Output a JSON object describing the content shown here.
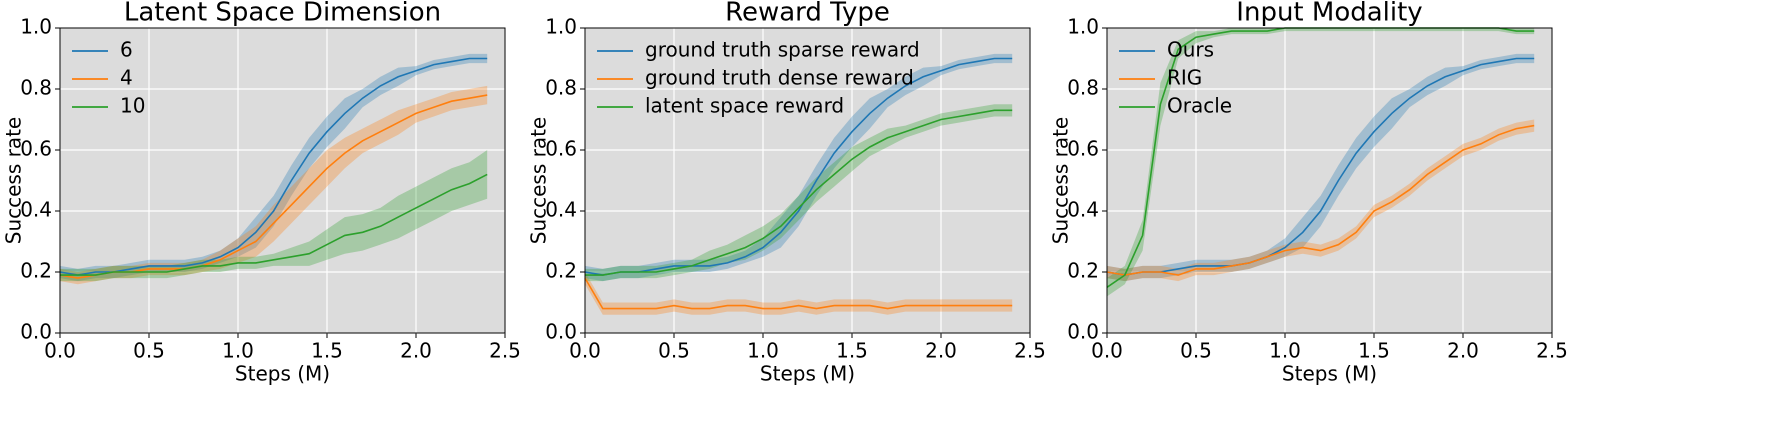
{
  "chart_data": [
    {
      "type": "line",
      "title": "Latent Space Dimension",
      "xlabel": "Steps (M)",
      "ylabel": "Success rate",
      "grid": true,
      "legend": "upper left",
      "xlim": [
        0,
        2.5
      ],
      "ylim": [
        0,
        1
      ],
      "xticks": [
        {
          "value": 0,
          "label": "0.0"
        },
        0.5,
        {
          "value": 1,
          "label": "1.0"
        },
        1.5,
        {
          "value": 2,
          "label": "2.0"
        },
        2.5
      ],
      "yticks": [
        {
          "value": 0,
          "label": "0.0"
        },
        0.2,
        0.4,
        0.6,
        0.8,
        {
          "value": 1,
          "label": "1.0"
        }
      ],
      "x": [
        0,
        0.1,
        0.2,
        0.3,
        0.4,
        0.5,
        0.6,
        0.7,
        0.8,
        0.9,
        1,
        1.1,
        1.2,
        1.3,
        1.4,
        1.5,
        1.6,
        1.7,
        1.8,
        1.9,
        2,
        2.1,
        2.2,
        2.3,
        2.4
      ],
      "series": [
        {
          "name": "6",
          "color": "#1f77b4",
          "values": [
            0.2,
            0.19,
            0.2,
            0.2,
            0.21,
            0.22,
            0.22,
            0.22,
            0.23,
            0.25,
            0.28,
            0.33,
            0.4,
            0.5,
            0.59,
            0.66,
            0.72,
            0.77,
            0.81,
            0.84,
            0.86,
            0.88,
            0.89,
            0.9,
            0.9
          ],
          "lower": [
            0.18,
            0.17,
            0.18,
            0.18,
            0.19,
            0.2,
            0.2,
            0.2,
            0.21,
            0.23,
            0.25,
            0.28,
            0.35,
            0.45,
            0.54,
            0.61,
            0.67,
            0.74,
            0.78,
            0.81,
            0.845,
            0.865,
            0.875,
            0.885,
            0.885
          ],
          "upper": [
            0.22,
            0.21,
            0.22,
            0.22,
            0.23,
            0.24,
            0.24,
            0.24,
            0.25,
            0.27,
            0.31,
            0.38,
            0.45,
            0.55,
            0.64,
            0.71,
            0.77,
            0.8,
            0.84,
            0.87,
            0.875,
            0.895,
            0.905,
            0.915,
            0.915
          ]
        },
        {
          "name": "4",
          "color": "#ff7f0e",
          "values": [
            0.19,
            0.18,
            0.19,
            0.2,
            0.2,
            0.21,
            0.21,
            0.21,
            0.22,
            0.24,
            0.27,
            0.3,
            0.36,
            0.42,
            0.48,
            0.54,
            0.59,
            0.63,
            0.66,
            0.69,
            0.72,
            0.74,
            0.76,
            0.77,
            0.78
          ],
          "lower": [
            0.17,
            0.16,
            0.17,
            0.18,
            0.18,
            0.19,
            0.19,
            0.19,
            0.2,
            0.21,
            0.23,
            0.25,
            0.3,
            0.36,
            0.42,
            0.48,
            0.54,
            0.59,
            0.62,
            0.65,
            0.69,
            0.71,
            0.73,
            0.74,
            0.75
          ],
          "upper": [
            0.21,
            0.2,
            0.21,
            0.22,
            0.22,
            0.23,
            0.23,
            0.23,
            0.24,
            0.27,
            0.31,
            0.35,
            0.42,
            0.48,
            0.54,
            0.6,
            0.64,
            0.67,
            0.7,
            0.73,
            0.75,
            0.77,
            0.79,
            0.8,
            0.81
          ]
        },
        {
          "name": "10",
          "color": "#2ca02c",
          "values": [
            0.19,
            0.19,
            0.19,
            0.2,
            0.2,
            0.2,
            0.2,
            0.21,
            0.22,
            0.22,
            0.23,
            0.23,
            0.24,
            0.25,
            0.26,
            0.29,
            0.32,
            0.33,
            0.35,
            0.38,
            0.41,
            0.44,
            0.47,
            0.49,
            0.52
          ],
          "lower": [
            0.17,
            0.17,
            0.17,
            0.18,
            0.18,
            0.18,
            0.18,
            0.19,
            0.2,
            0.2,
            0.21,
            0.21,
            0.22,
            0.22,
            0.22,
            0.24,
            0.26,
            0.27,
            0.29,
            0.31,
            0.34,
            0.37,
            0.4,
            0.42,
            0.44
          ],
          "upper": [
            0.21,
            0.21,
            0.21,
            0.22,
            0.22,
            0.22,
            0.22,
            0.23,
            0.24,
            0.24,
            0.25,
            0.25,
            0.26,
            0.28,
            0.3,
            0.34,
            0.38,
            0.39,
            0.41,
            0.45,
            0.48,
            0.51,
            0.54,
            0.56,
            0.6
          ]
        }
      ]
    },
    {
      "type": "line",
      "title": "Reward Type",
      "xlabel": "Steps (M)",
      "ylabel": "Success rate",
      "grid": true,
      "legend": "upper left",
      "xlim": [
        0,
        2.5
      ],
      "ylim": [
        0,
        1
      ],
      "xticks": [
        {
          "value": 0,
          "label": "0.0"
        },
        0.5,
        {
          "value": 1,
          "label": "1.0"
        },
        1.5,
        {
          "value": 2,
          "label": "2.0"
        },
        2.5
      ],
      "yticks": [
        {
          "value": 0,
          "label": "0.0"
        },
        0.2,
        0.4,
        0.6,
        0.8,
        {
          "value": 1,
          "label": "1.0"
        }
      ],
      "x": [
        0,
        0.1,
        0.2,
        0.3,
        0.4,
        0.5,
        0.6,
        0.7,
        0.8,
        0.9,
        1,
        1.1,
        1.2,
        1.3,
        1.4,
        1.5,
        1.6,
        1.7,
        1.8,
        1.9,
        2,
        2.1,
        2.2,
        2.3,
        2.4
      ],
      "series": [
        {
          "name": "ground truth sparse reward",
          "color": "#1f77b4",
          "values": [
            0.2,
            0.19,
            0.2,
            0.2,
            0.21,
            0.22,
            0.22,
            0.22,
            0.23,
            0.25,
            0.28,
            0.33,
            0.4,
            0.5,
            0.59,
            0.66,
            0.72,
            0.77,
            0.81,
            0.84,
            0.86,
            0.88,
            0.89,
            0.9,
            0.9
          ],
          "lower": [
            0.18,
            0.17,
            0.18,
            0.18,
            0.19,
            0.2,
            0.2,
            0.2,
            0.21,
            0.23,
            0.25,
            0.28,
            0.35,
            0.45,
            0.54,
            0.61,
            0.67,
            0.74,
            0.78,
            0.81,
            0.845,
            0.865,
            0.875,
            0.885,
            0.885
          ],
          "upper": [
            0.22,
            0.21,
            0.22,
            0.22,
            0.23,
            0.24,
            0.24,
            0.24,
            0.25,
            0.27,
            0.31,
            0.38,
            0.45,
            0.55,
            0.64,
            0.71,
            0.77,
            0.8,
            0.84,
            0.87,
            0.875,
            0.895,
            0.905,
            0.915,
            0.915
          ]
        },
        {
          "name": "ground truth dense reward",
          "color": "#ff7f0e",
          "values": [
            0.18,
            0.08,
            0.08,
            0.08,
            0.08,
            0.09,
            0.08,
            0.08,
            0.09,
            0.09,
            0.08,
            0.08,
            0.09,
            0.08,
            0.09,
            0.09,
            0.09,
            0.08,
            0.09,
            0.09,
            0.09,
            0.09,
            0.09,
            0.09,
            0.09
          ],
          "lower": [
            0.16,
            0.06,
            0.06,
            0.06,
            0.06,
            0.07,
            0.06,
            0.06,
            0.07,
            0.07,
            0.06,
            0.06,
            0.07,
            0.06,
            0.07,
            0.07,
            0.07,
            0.06,
            0.07,
            0.07,
            0.07,
            0.07,
            0.07,
            0.07,
            0.07
          ],
          "upper": [
            0.2,
            0.1,
            0.1,
            0.1,
            0.1,
            0.11,
            0.1,
            0.1,
            0.11,
            0.11,
            0.1,
            0.1,
            0.11,
            0.1,
            0.11,
            0.11,
            0.11,
            0.1,
            0.11,
            0.11,
            0.11,
            0.11,
            0.11,
            0.11,
            0.11
          ]
        },
        {
          "name": "latent space reward",
          "color": "#2ca02c",
          "values": [
            0.19,
            0.19,
            0.2,
            0.2,
            0.2,
            0.21,
            0.22,
            0.24,
            0.26,
            0.28,
            0.31,
            0.35,
            0.41,
            0.47,
            0.52,
            0.57,
            0.61,
            0.64,
            0.66,
            0.68,
            0.7,
            0.71,
            0.72,
            0.73,
            0.73
          ],
          "lower": [
            0.17,
            0.17,
            0.18,
            0.18,
            0.18,
            0.19,
            0.2,
            0.21,
            0.23,
            0.24,
            0.27,
            0.31,
            0.37,
            0.43,
            0.48,
            0.53,
            0.58,
            0.61,
            0.64,
            0.66,
            0.68,
            0.69,
            0.7,
            0.71,
            0.71
          ],
          "upper": [
            0.21,
            0.21,
            0.22,
            0.22,
            0.22,
            0.23,
            0.24,
            0.27,
            0.29,
            0.32,
            0.35,
            0.39,
            0.45,
            0.51,
            0.56,
            0.61,
            0.64,
            0.67,
            0.68,
            0.7,
            0.72,
            0.73,
            0.74,
            0.75,
            0.75
          ]
        }
      ]
    },
    {
      "type": "line",
      "title": "Input Modality",
      "xlabel": "Steps (M)",
      "ylabel": "Success rate",
      "grid": true,
      "legend": "upper left",
      "xlim": [
        0,
        2.5
      ],
      "ylim": [
        0,
        1
      ],
      "xticks": [
        {
          "value": 0,
          "label": "0.0"
        },
        0.5,
        {
          "value": 1,
          "label": "1.0"
        },
        1.5,
        {
          "value": 2,
          "label": "2.0"
        },
        2.5
      ],
      "yticks": [
        {
          "value": 0,
          "label": "0.0"
        },
        0.2,
        0.4,
        0.6,
        0.8,
        {
          "value": 1,
          "label": "1.0"
        }
      ],
      "x": [
        0,
        0.1,
        0.2,
        0.3,
        0.4,
        0.5,
        0.6,
        0.7,
        0.8,
        0.9,
        1,
        1.1,
        1.2,
        1.3,
        1.4,
        1.5,
        1.6,
        1.7,
        1.8,
        1.9,
        2,
        2.1,
        2.2,
        2.3,
        2.4
      ],
      "series": [
        {
          "name": "Ours",
          "color": "#1f77b4",
          "values": [
            0.2,
            0.19,
            0.2,
            0.2,
            0.21,
            0.22,
            0.22,
            0.22,
            0.23,
            0.25,
            0.28,
            0.33,
            0.4,
            0.5,
            0.59,
            0.66,
            0.72,
            0.77,
            0.81,
            0.84,
            0.86,
            0.88,
            0.89,
            0.9,
            0.9
          ],
          "lower": [
            0.18,
            0.17,
            0.18,
            0.18,
            0.19,
            0.2,
            0.2,
            0.2,
            0.21,
            0.23,
            0.25,
            0.28,
            0.35,
            0.45,
            0.54,
            0.61,
            0.67,
            0.74,
            0.78,
            0.81,
            0.845,
            0.865,
            0.875,
            0.885,
            0.885
          ],
          "upper": [
            0.22,
            0.21,
            0.22,
            0.22,
            0.23,
            0.24,
            0.24,
            0.24,
            0.25,
            0.27,
            0.31,
            0.38,
            0.45,
            0.55,
            0.64,
            0.71,
            0.77,
            0.8,
            0.84,
            0.87,
            0.875,
            0.895,
            0.905,
            0.915,
            0.915
          ]
        },
        {
          "name": "RIG",
          "color": "#ff7f0e",
          "values": [
            0.2,
            0.19,
            0.2,
            0.2,
            0.19,
            0.21,
            0.21,
            0.22,
            0.23,
            0.25,
            0.27,
            0.28,
            0.27,
            0.29,
            0.33,
            0.4,
            0.43,
            0.47,
            0.52,
            0.56,
            0.6,
            0.62,
            0.65,
            0.67,
            0.68
          ],
          "lower": [
            0.18,
            0.17,
            0.18,
            0.18,
            0.17,
            0.19,
            0.19,
            0.2,
            0.21,
            0.23,
            0.25,
            0.26,
            0.25,
            0.27,
            0.31,
            0.38,
            0.41,
            0.45,
            0.5,
            0.54,
            0.58,
            0.6,
            0.63,
            0.65,
            0.66
          ],
          "upper": [
            0.22,
            0.21,
            0.22,
            0.22,
            0.21,
            0.23,
            0.23,
            0.24,
            0.25,
            0.27,
            0.29,
            0.3,
            0.29,
            0.31,
            0.35,
            0.42,
            0.45,
            0.49,
            0.54,
            0.58,
            0.62,
            0.64,
            0.67,
            0.69,
            0.7
          ]
        },
        {
          "name": "Oracle",
          "color": "#2ca02c",
          "values": [
            0.15,
            0.19,
            0.32,
            0.75,
            0.93,
            0.97,
            0.98,
            0.99,
            0.99,
            0.99,
            1,
            1,
            1,
            1,
            1,
            1,
            1,
            1,
            1,
            1,
            1,
            1,
            1,
            0.99,
            0.99
          ],
          "lower": [
            0.12,
            0.16,
            0.27,
            0.68,
            0.9,
            0.95,
            0.97,
            0.98,
            0.98,
            0.98,
            0.99,
            0.99,
            0.99,
            0.99,
            0.99,
            0.99,
            0.99,
            0.99,
            0.99,
            0.99,
            0.99,
            0.99,
            0.99,
            0.98,
            0.98
          ],
          "upper": [
            0.18,
            0.22,
            0.37,
            0.82,
            0.96,
            0.99,
            0.99,
            1,
            1,
            1,
            1,
            1,
            1,
            1,
            1,
            1,
            1,
            1,
            1,
            1,
            1,
            1,
            1,
            1,
            1
          ]
        }
      ]
    }
  ]
}
